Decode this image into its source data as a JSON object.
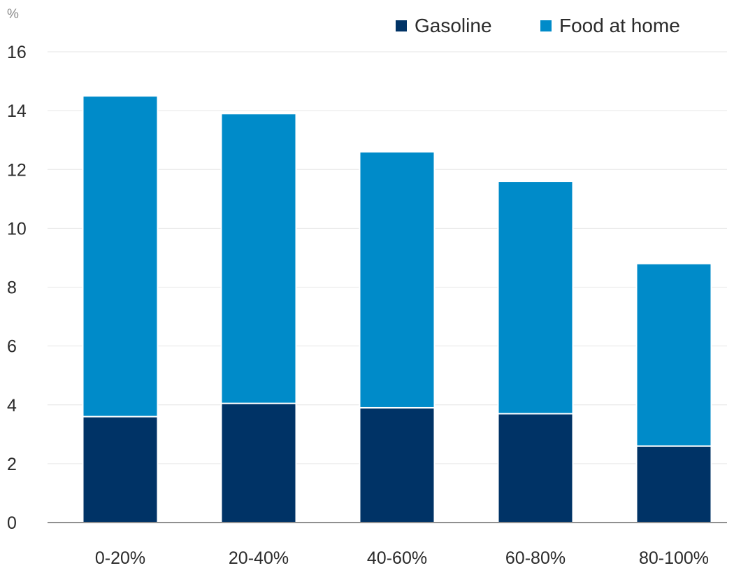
{
  "chart_data": {
    "type": "bar",
    "stacked": true,
    "unit_label": "%",
    "title": "",
    "xlabel": "",
    "ylabel": "",
    "categories": [
      "0-20%",
      "20-40%",
      "40-60%",
      "60-80%",
      "80-100%"
    ],
    "ylim": [
      0,
      16
    ],
    "yticks": [
      0,
      2,
      4,
      6,
      8,
      10,
      12,
      14,
      16
    ],
    "grid": true,
    "legend_position": "top-right",
    "series": [
      {
        "name": "Gasoline",
        "color": "#003366",
        "values": [
          3.6,
          4.05,
          3.9,
          3.7,
          2.6
        ]
      },
      {
        "name": "Food at home",
        "color": "#008bc9",
        "values": [
          10.9,
          9.85,
          8.7,
          7.9,
          6.2
        ]
      }
    ]
  }
}
